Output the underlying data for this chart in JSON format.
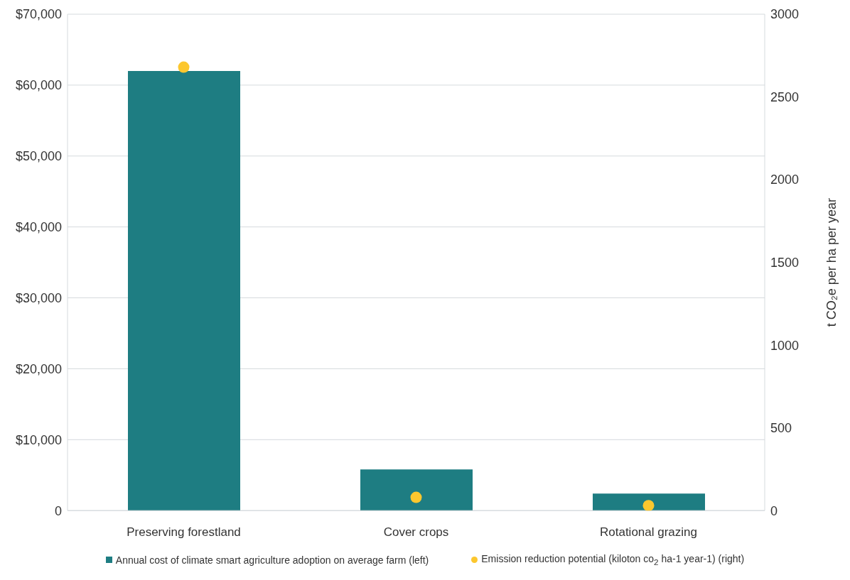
{
  "chart_data": {
    "type": "bar",
    "ylabel": null,
    "y2label": "t CO₂e  per ha per year",
    "categories": [
      "Preserving forestland",
      "Cover crops",
      "Rotational grazing"
    ],
    "series": [
      {
        "name": "Annual cost of climate smart agriculture adoption on average farm (left)",
        "color": "#1e7d82",
        "values": [
          62000,
          5800,
          2400
        ]
      },
      {
        "name": "Emission reduction potential (kiloton co$_{2}$ ha-1 year-1) (right)",
        "type": "scatter",
        "axis": "y2",
        "color": "#fcc72e",
        "values": [
          2680,
          80,
          30
        ]
      }
    ],
    "ylim": [
      0,
      70000
    ],
    "yticks": [
      {
        "value": 0,
        "label": "0"
      },
      {
        "value": 10000,
        "label": "$10,000"
      },
      {
        "value": 20000,
        "label": "$20,000"
      },
      {
        "value": 30000,
        "label": "$30,000"
      },
      {
        "value": 40000,
        "label": "$40,000"
      },
      {
        "value": 50000,
        "label": "$50,000"
      },
      {
        "value": 60000,
        "label": "$60,000"
      },
      {
        "value": 70000,
        "label": "$70,000"
      }
    ],
    "y2lim": [
      0,
      3000
    ],
    "y2ticks": [
      0,
      500,
      1000,
      1500,
      2000,
      2500,
      3000
    ],
    "grid": "y",
    "legend": "bottom",
    "marker": "circle"
  }
}
